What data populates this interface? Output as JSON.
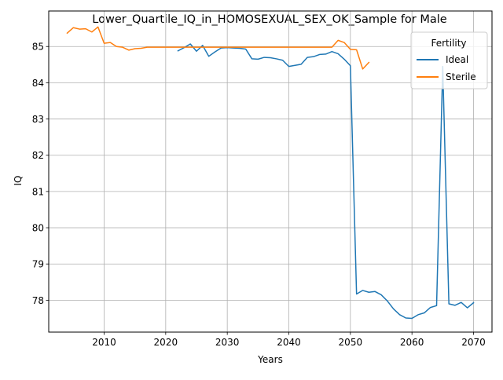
{
  "chart_data": {
    "type": "line",
    "title": "Lower_Quartile_IQ_in_HOMOSEXUAL_SEX_OK_Sample for Male",
    "xlabel": "Years",
    "ylabel": "IQ",
    "xlim": [
      2001,
      2073
    ],
    "ylim": [
      77.12,
      85.98
    ],
    "xticks": [
      2010,
      2020,
      2030,
      2040,
      2050,
      2060,
      2070
    ],
    "yticks": [
      78,
      79,
      80,
      81,
      82,
      83,
      84,
      85
    ],
    "grid": true,
    "legend": {
      "title": "Fertility",
      "position": "top-right"
    },
    "series": [
      {
        "name": "Ideal",
        "color": "#1f77b4",
        "x": [
          2022,
          2023,
          2024,
          2025,
          2026,
          2027,
          2028,
          2029,
          2030,
          2031,
          2032,
          2033,
          2034,
          2035,
          2036,
          2037,
          2038,
          2039,
          2040,
          2041,
          2042,
          2043,
          2044,
          2045,
          2046,
          2047,
          2048,
          2049,
          2050,
          2051,
          2052,
          2053,
          2054,
          2055,
          2056,
          2057,
          2058,
          2059,
          2060,
          2061,
          2062,
          2063,
          2064,
          2065,
          2066,
          2067,
          2068,
          2069,
          2070
        ],
        "y": [
          84.88,
          84.97,
          85.07,
          84.87,
          85.03,
          84.73,
          84.85,
          84.96,
          84.97,
          84.96,
          84.95,
          84.93,
          84.66,
          84.65,
          84.7,
          84.69,
          84.66,
          84.62,
          84.45,
          84.48,
          84.51,
          84.7,
          84.72,
          84.78,
          84.79,
          84.86,
          84.8,
          84.65,
          84.47,
          78.17,
          78.27,
          78.22,
          78.24,
          78.15,
          77.98,
          77.76,
          77.6,
          77.51,
          77.5,
          77.6,
          77.65,
          77.8,
          77.85,
          84.45,
          77.9,
          77.86,
          77.94,
          77.79,
          77.93
        ]
      },
      {
        "name": "Sterile",
        "color": "#ff7f0e",
        "x": [
          2004,
          2005,
          2006,
          2007,
          2008,
          2009,
          2010,
          2011,
          2012,
          2013,
          2014,
          2015,
          2016,
          2017,
          2018,
          2019,
          2020,
          2021,
          2022,
          2023,
          2024,
          2025,
          2026,
          2027,
          2028,
          2029,
          2030,
          2031,
          2032,
          2033,
          2034,
          2035,
          2036,
          2037,
          2038,
          2039,
          2040,
          2041,
          2042,
          2043,
          2044,
          2045,
          2046,
          2047,
          2048,
          2049,
          2050,
          2051,
          2052,
          2053
        ],
        "y": [
          85.37,
          85.52,
          85.48,
          85.49,
          85.4,
          85.54,
          85.09,
          85.11,
          85.0,
          84.98,
          84.9,
          84.94,
          84.95,
          84.98,
          84.98,
          84.98,
          84.98,
          84.98,
          84.98,
          84.98,
          84.98,
          84.98,
          84.98,
          84.98,
          84.98,
          84.98,
          84.98,
          84.98,
          84.98,
          84.98,
          84.98,
          84.98,
          84.98,
          84.98,
          84.98,
          84.98,
          84.98,
          84.98,
          84.98,
          84.98,
          84.98,
          84.98,
          84.98,
          84.98,
          85.17,
          85.11,
          84.92,
          84.91,
          84.38,
          84.56
        ]
      }
    ]
  }
}
